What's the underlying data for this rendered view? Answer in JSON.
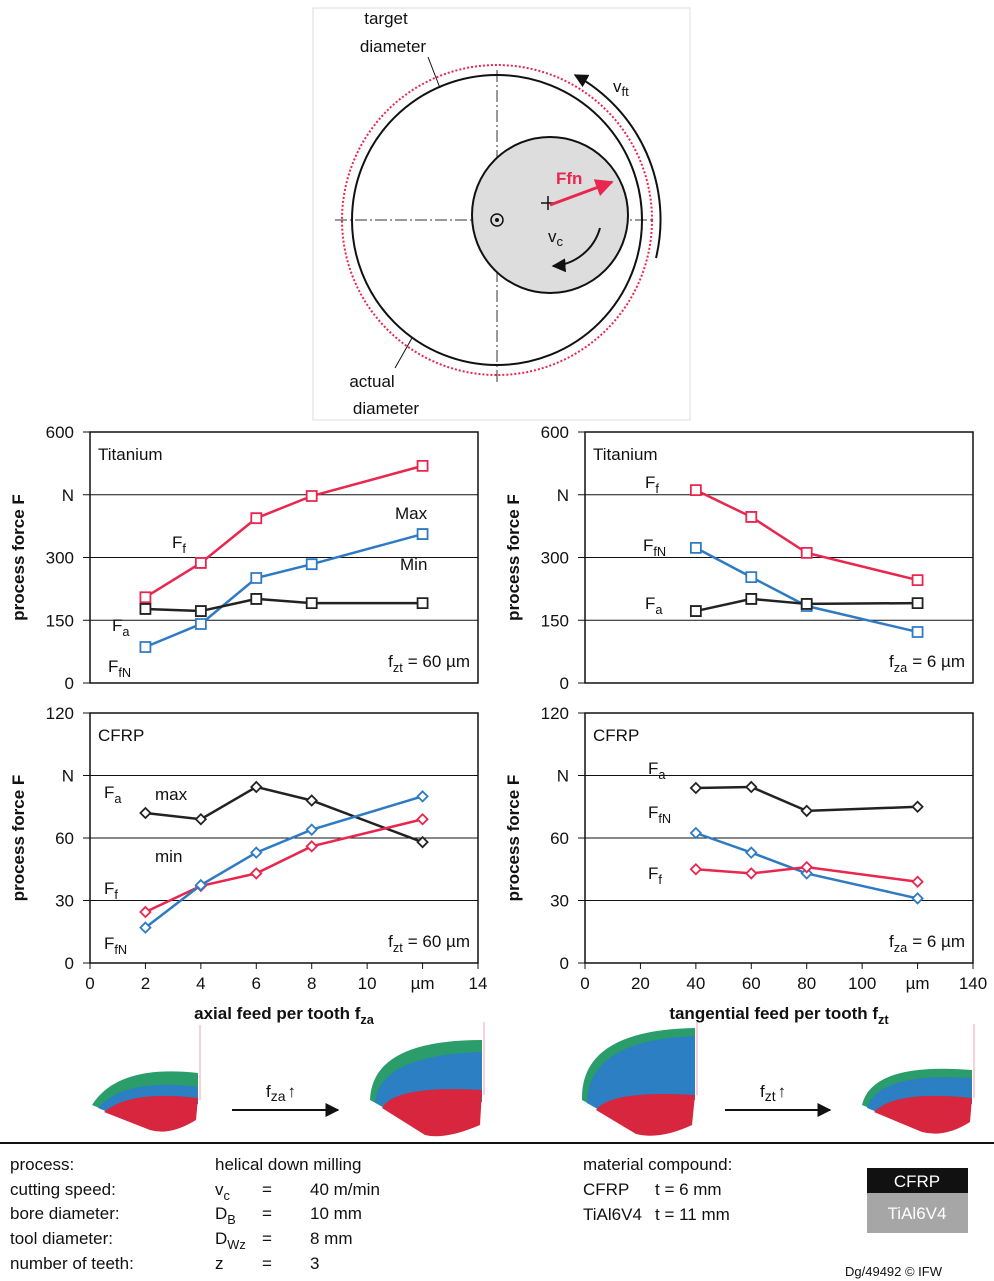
{
  "diagram": {
    "target_label": [
      "target",
      "diameter"
    ],
    "actual_label": [
      "actual",
      "diameter"
    ],
    "vft": {
      "symbol": "v",
      "subscript": "ft"
    },
    "ffn": "Ffn",
    "vc": {
      "symbol": "v",
      "subscript": "c"
    }
  },
  "chart_data": [
    {
      "type": "line",
      "panel_title": "Titanium",
      "ylabel": "process force F",
      "marker": "square",
      "grid": true,
      "condition": {
        "symbol": "f",
        "subscript": "zt",
        "text": "= 60 µm"
      },
      "x": [
        2,
        4,
        6,
        8,
        12
      ],
      "xlim": [
        0,
        14
      ],
      "ylim": [
        0,
        600
      ],
      "yticks": [
        0,
        150,
        300,
        {
          "value": 450,
          "label": "N"
        },
        600
      ],
      "series": [
        {
          "name": "F",
          "subscript": "f",
          "color": "#e8264e",
          "values": [
            205,
            287,
            394,
            447,
            519
          ]
        },
        {
          "name": "F",
          "subscript": "fN",
          "color": "#2e7bc4",
          "values": [
            86,
            141,
            251,
            284,
            356
          ]
        },
        {
          "name": "F",
          "subscript": "a",
          "color": "#222222",
          "values": [
            177,
            172,
            201,
            191,
            191
          ]
        }
      ],
      "annotations": [
        "Max",
        "Min"
      ]
    },
    {
      "type": "line",
      "panel_title": "Titanium",
      "ylabel": "process force F",
      "marker": "square",
      "grid": true,
      "condition": {
        "symbol": "f",
        "subscript": "za",
        "text": "= 6 µm"
      },
      "x": [
        40,
        60,
        80,
        120
      ],
      "xlim": [
        0,
        140
      ],
      "ylim": [
        0,
        600
      ],
      "yticks": [
        0,
        150,
        300,
        {
          "value": 450,
          "label": "N"
        },
        600
      ],
      "series": [
        {
          "name": "F",
          "subscript": "f",
          "color": "#e8264e",
          "values": [
            461,
            397,
            311,
            246
          ]
        },
        {
          "name": "F",
          "subscript": "fN",
          "color": "#2e7bc4",
          "values": [
            323,
            253,
            184,
            122
          ]
        },
        {
          "name": "F",
          "subscript": "a",
          "color": "#222222",
          "values": [
            172,
            201,
            189,
            191
          ]
        }
      ],
      "annotations": []
    },
    {
      "type": "line",
      "panel_title": "CFRP",
      "ylabel": "process force F",
      "marker": "diamond",
      "grid": true,
      "condition": {
        "symbol": "f",
        "subscript": "zt",
        "text": "= 60 µm"
      },
      "xlabel": {
        "text": "axial feed per tooth f",
        "subscript": "za"
      },
      "x": [
        2,
        4,
        6,
        8,
        12
      ],
      "xlim": [
        0,
        14
      ],
      "xticks": [
        0,
        2,
        4,
        6,
        8,
        10,
        {
          "value": 12,
          "label": "µm"
        },
        14
      ],
      "ylim": [
        0,
        120
      ],
      "yticks": [
        0,
        30,
        60,
        {
          "value": 90,
          "label": "N"
        },
        120
      ],
      "series": [
        {
          "name": "F",
          "subscript": "a",
          "color": "#222222",
          "values": [
            72,
            69,
            84.5,
            78,
            58
          ]
        },
        {
          "name": "F",
          "subscript": "f",
          "color": "#e8264e",
          "values": [
            24.5,
            37,
            43,
            56,
            69
          ]
        },
        {
          "name": "F",
          "subscript": "fN",
          "color": "#2e7bc4",
          "values": [
            17,
            37.4,
            53,
            64,
            80
          ]
        }
      ],
      "annotations": [
        "max",
        "min"
      ]
    },
    {
      "type": "line",
      "panel_title": "CFRP",
      "ylabel": "process force F",
      "marker": "diamond",
      "grid": true,
      "condition": {
        "symbol": "f",
        "subscript": "za",
        "text": "= 6 µm"
      },
      "xlabel": {
        "text": "tangential feed per tooth f",
        "subscript": "zt"
      },
      "x": [
        40,
        60,
        80,
        120
      ],
      "xlim": [
        0,
        140
      ],
      "xticks": [
        0,
        20,
        40,
        60,
        80,
        100,
        {
          "value": 120,
          "label": "µm"
        },
        140
      ],
      "ylim": [
        0,
        120
      ],
      "yticks": [
        0,
        30,
        60,
        {
          "value": 90,
          "label": "N"
        },
        120
      ],
      "series": [
        {
          "name": "F",
          "subscript": "a",
          "color": "#222222",
          "values": [
            84,
            84.5,
            73,
            75
          ]
        },
        {
          "name": "F",
          "subscript": "fN",
          "color": "#2e7bc4",
          "values": [
            62.4,
            53,
            43,
            31
          ]
        },
        {
          "name": "F",
          "subscript": "f",
          "color": "#e8264e",
          "values": [
            45,
            43,
            46,
            39
          ]
        }
      ],
      "annotations": []
    }
  ],
  "illustrations": [
    {
      "symbol": "f",
      "subscript": "za",
      "arrow": "↑"
    },
    {
      "symbol": "f",
      "subscript": "zt",
      "arrow": "↑"
    }
  ],
  "process_table": {
    "rows": [
      {
        "label": "process:",
        "value": "helical down milling"
      },
      {
        "label": "cutting speed:",
        "symbol": "v",
        "subscript": "c",
        "equals": "=",
        "value": "40 m/min"
      },
      {
        "label": "bore diameter:",
        "symbol": "D",
        "subscript": "B",
        "equals": "=",
        "value": "10 mm"
      },
      {
        "label": "tool diameter:",
        "symbol": "D",
        "subscript": "Wz",
        "equals": "=",
        "value": "8 mm"
      },
      {
        "label": "number of teeth:",
        "symbol": "z",
        "equals": "=",
        "value": "3"
      }
    ]
  },
  "material": {
    "title": "material compound:",
    "rows": [
      {
        "name": "CFRP",
        "thickness": "t = 6 mm"
      },
      {
        "name": "TiAl6V4",
        "thickness": "t = 11 mm"
      }
    ],
    "legend": [
      "CFRP",
      "TiAl6V4"
    ]
  },
  "footer": "Dg/49492 © IFW"
}
